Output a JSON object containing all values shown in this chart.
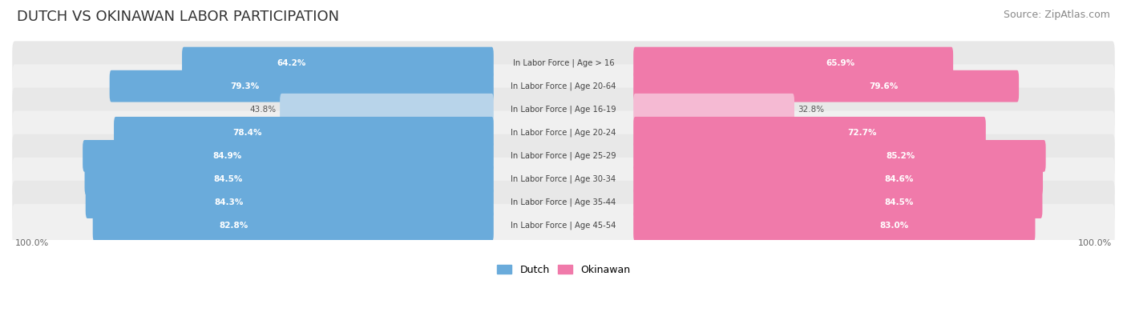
{
  "title": "DUTCH VS OKINAWAN LABOR PARTICIPATION",
  "source": "Source: ZipAtlas.com",
  "categories": [
    "In Labor Force | Age > 16",
    "In Labor Force | Age 20-64",
    "In Labor Force | Age 16-19",
    "In Labor Force | Age 20-24",
    "In Labor Force | Age 25-29",
    "In Labor Force | Age 30-34",
    "In Labor Force | Age 35-44",
    "In Labor Force | Age 45-54"
  ],
  "dutch_values": [
    64.2,
    79.3,
    43.8,
    78.4,
    84.9,
    84.5,
    84.3,
    82.8
  ],
  "okinawan_values": [
    65.9,
    79.6,
    32.8,
    72.7,
    85.2,
    84.6,
    84.5,
    83.0
  ],
  "dutch_color": "#6aabdb",
  "dutch_color_light": "#b8d4ea",
  "okinawan_color": "#f07aaa",
  "okinawan_color_light": "#f5bad3",
  "row_bg_color": "#e8e8e8",
  "row_bg_color_alt": "#f0f0f0",
  "max_value": 100.0,
  "legend_dutch": "Dutch",
  "legend_okinawan": "Okinawan",
  "background_color": "#ffffff",
  "title_fontsize": 13,
  "source_fontsize": 9
}
